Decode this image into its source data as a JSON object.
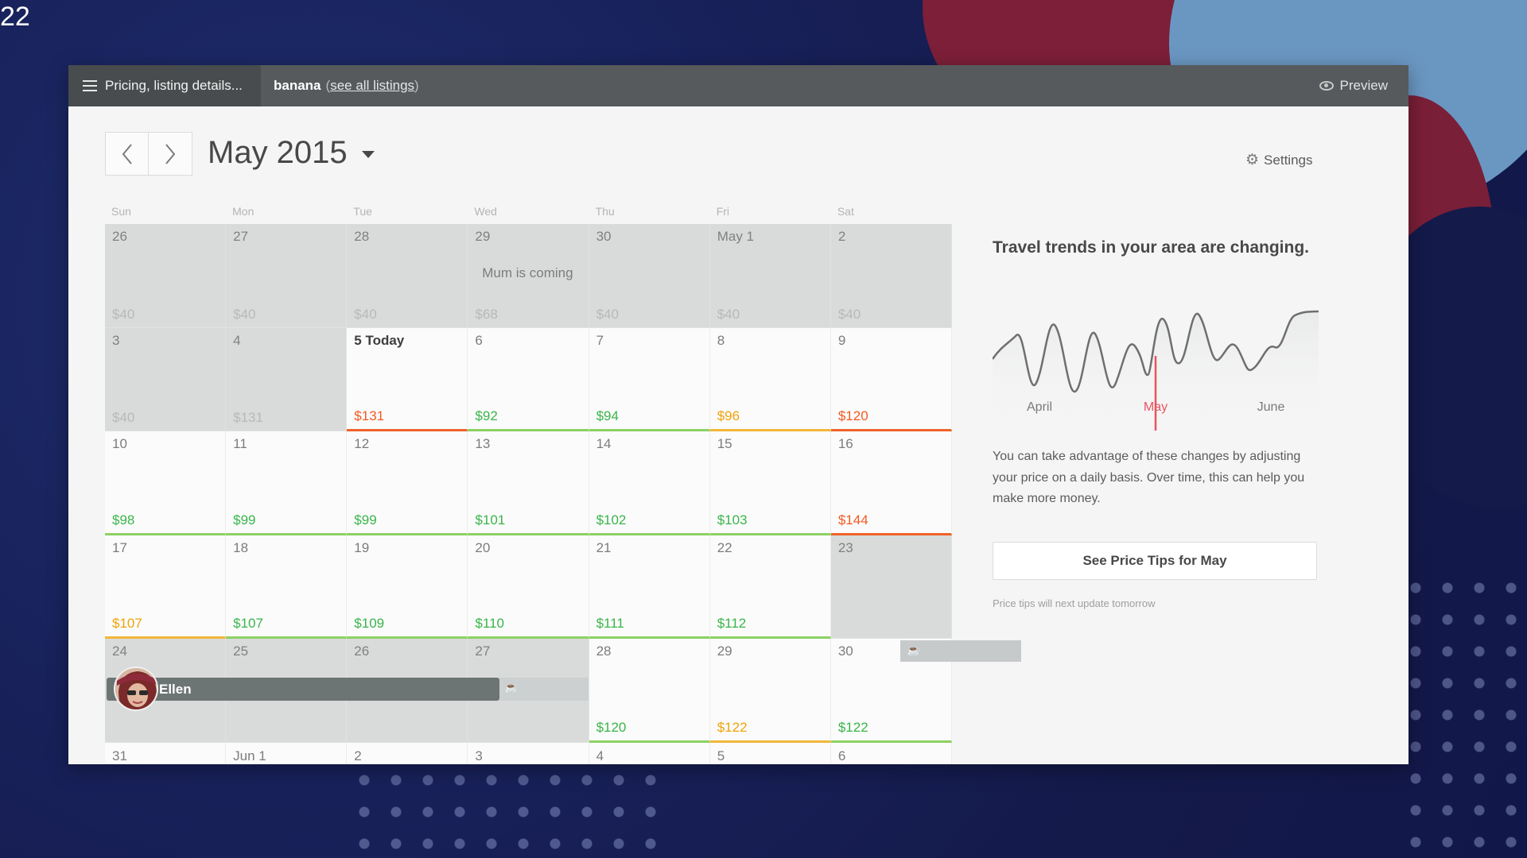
{
  "slide": {
    "number": "22"
  },
  "topbar": {
    "menu_label": "Pricing, listing details...",
    "listing_name": "banana",
    "paren_open": "(",
    "see_all_label": "see all listings",
    "paren_close": ")",
    "preview_label": "Preview"
  },
  "header": {
    "month_title": "May 2015",
    "prev_icon": "chevron-left-icon",
    "next_icon": "chevron-right-icon",
    "settings_label": "Settings"
  },
  "weekdays": [
    "Sun",
    "Mon",
    "Tue",
    "Wed",
    "Thu",
    "Fri",
    "Sat"
  ],
  "calendar": {
    "cells": [
      {
        "day": "26",
        "price": "$40",
        "price_color": "gray",
        "state": "past"
      },
      {
        "day": "27",
        "price": "$40",
        "price_color": "gray",
        "state": "past"
      },
      {
        "day": "28",
        "price": "$40",
        "price_color": "gray",
        "state": "past"
      },
      {
        "day": "29",
        "price": "$68",
        "price_color": "gray",
        "state": "past",
        "note": "Mum is coming"
      },
      {
        "day": "30",
        "price": "$40",
        "price_color": "gray",
        "state": "past"
      },
      {
        "day": "May 1",
        "price": "$40",
        "price_color": "gray",
        "state": "past"
      },
      {
        "day": "2",
        "price": "$40",
        "price_color": "gray",
        "state": "past"
      },
      {
        "day": "3",
        "price": "$40",
        "price_color": "gray",
        "state": "past"
      },
      {
        "day": "4",
        "price": "$131",
        "price_color": "gray",
        "state": "past"
      },
      {
        "day": "5 Today",
        "price": "$131",
        "price_color": "red",
        "state": "today",
        "underline": "red"
      },
      {
        "day": "6",
        "price": "$92",
        "price_color": "green",
        "state": "open",
        "underline": "green"
      },
      {
        "day": "7",
        "price": "$94",
        "price_color": "green",
        "state": "open",
        "underline": "green"
      },
      {
        "day": "8",
        "price": "$96",
        "price_color": "orange",
        "state": "open",
        "underline": "orange"
      },
      {
        "day": "9",
        "price": "$120",
        "price_color": "red",
        "state": "open",
        "underline": "red"
      },
      {
        "day": "10",
        "price": "$98",
        "price_color": "green",
        "state": "open",
        "underline": "green"
      },
      {
        "day": "11",
        "price": "$99",
        "price_color": "green",
        "state": "open",
        "underline": "green"
      },
      {
        "day": "12",
        "price": "$99",
        "price_color": "green",
        "state": "open",
        "underline": "green"
      },
      {
        "day": "13",
        "price": "$101",
        "price_color": "green",
        "state": "open",
        "underline": "green"
      },
      {
        "day": "14",
        "price": "$102",
        "price_color": "green",
        "state": "open",
        "underline": "green"
      },
      {
        "day": "15",
        "price": "$103",
        "price_color": "green",
        "state": "open",
        "underline": "green"
      },
      {
        "day": "16",
        "price": "$144",
        "price_color": "red",
        "state": "open",
        "underline": "red"
      },
      {
        "day": "17",
        "price": "$107",
        "price_color": "orange",
        "state": "open",
        "underline": "orange"
      },
      {
        "day": "18",
        "price": "$107",
        "price_color": "green",
        "state": "open",
        "underline": "green"
      },
      {
        "day": "19",
        "price": "$109",
        "price_color": "green",
        "state": "open",
        "underline": "green"
      },
      {
        "day": "20",
        "price": "$110",
        "price_color": "green",
        "state": "open",
        "underline": "green"
      },
      {
        "day": "21",
        "price": "$111",
        "price_color": "green",
        "state": "open",
        "underline": "green"
      },
      {
        "day": "22",
        "price": "$112",
        "price_color": "green",
        "state": "open",
        "underline": "green"
      },
      {
        "day": "23",
        "price": "",
        "price_color": "gray",
        "state": "blocked"
      },
      {
        "day": "24",
        "price": "",
        "price_color": "gray",
        "state": "blocked"
      },
      {
        "day": "25",
        "price": "",
        "price_color": "gray",
        "state": "blocked"
      },
      {
        "day": "26",
        "price": "",
        "price_color": "gray",
        "state": "blocked"
      },
      {
        "day": "27",
        "price": "",
        "price_color": "gray",
        "state": "blocked"
      },
      {
        "day": "28",
        "price": "$120",
        "price_color": "green",
        "state": "open",
        "underline": "green"
      },
      {
        "day": "29",
        "price": "$122",
        "price_color": "orange",
        "state": "open",
        "underline": "orange"
      },
      {
        "day": "30",
        "price": "$122",
        "price_color": "green",
        "state": "open",
        "underline": "green"
      },
      {
        "day": "31",
        "price": "",
        "price_color": "gray",
        "state": "open"
      },
      {
        "day": "Jun 1",
        "price": "",
        "price_color": "gray",
        "state": "open"
      },
      {
        "day": "2",
        "price": "",
        "price_color": "gray",
        "state": "open"
      },
      {
        "day": "3",
        "price": "",
        "price_color": "gray",
        "state": "open"
      },
      {
        "day": "4",
        "price": "",
        "price_color": "gray",
        "state": "open"
      },
      {
        "day": "5",
        "price": "",
        "price_color": "gray",
        "state": "open"
      },
      {
        "day": "6",
        "price": "",
        "price_color": "gray",
        "state": "open"
      }
    ],
    "reservation": {
      "guest_name": "Ellen",
      "icon": "avatar"
    },
    "blocked_icon": "coffee-cup-icon"
  },
  "panel": {
    "title": "Travel trends in your area are changing.",
    "month_labels": [
      "April",
      "May",
      "June"
    ],
    "current_month": "May",
    "description": "You can take advantage of these changes by adjusting your price on a daily basis. Over time, this can help you make more money.",
    "tips_button_label": "See Price Tips for May",
    "tips_note": "Price tips will next update tomorrow"
  },
  "colors": {
    "green": "#39b54a",
    "orange": "#f0a30a",
    "red": "#f25a1f",
    "trend_marker": "#e8545f",
    "topbar": "#565a5c"
  }
}
